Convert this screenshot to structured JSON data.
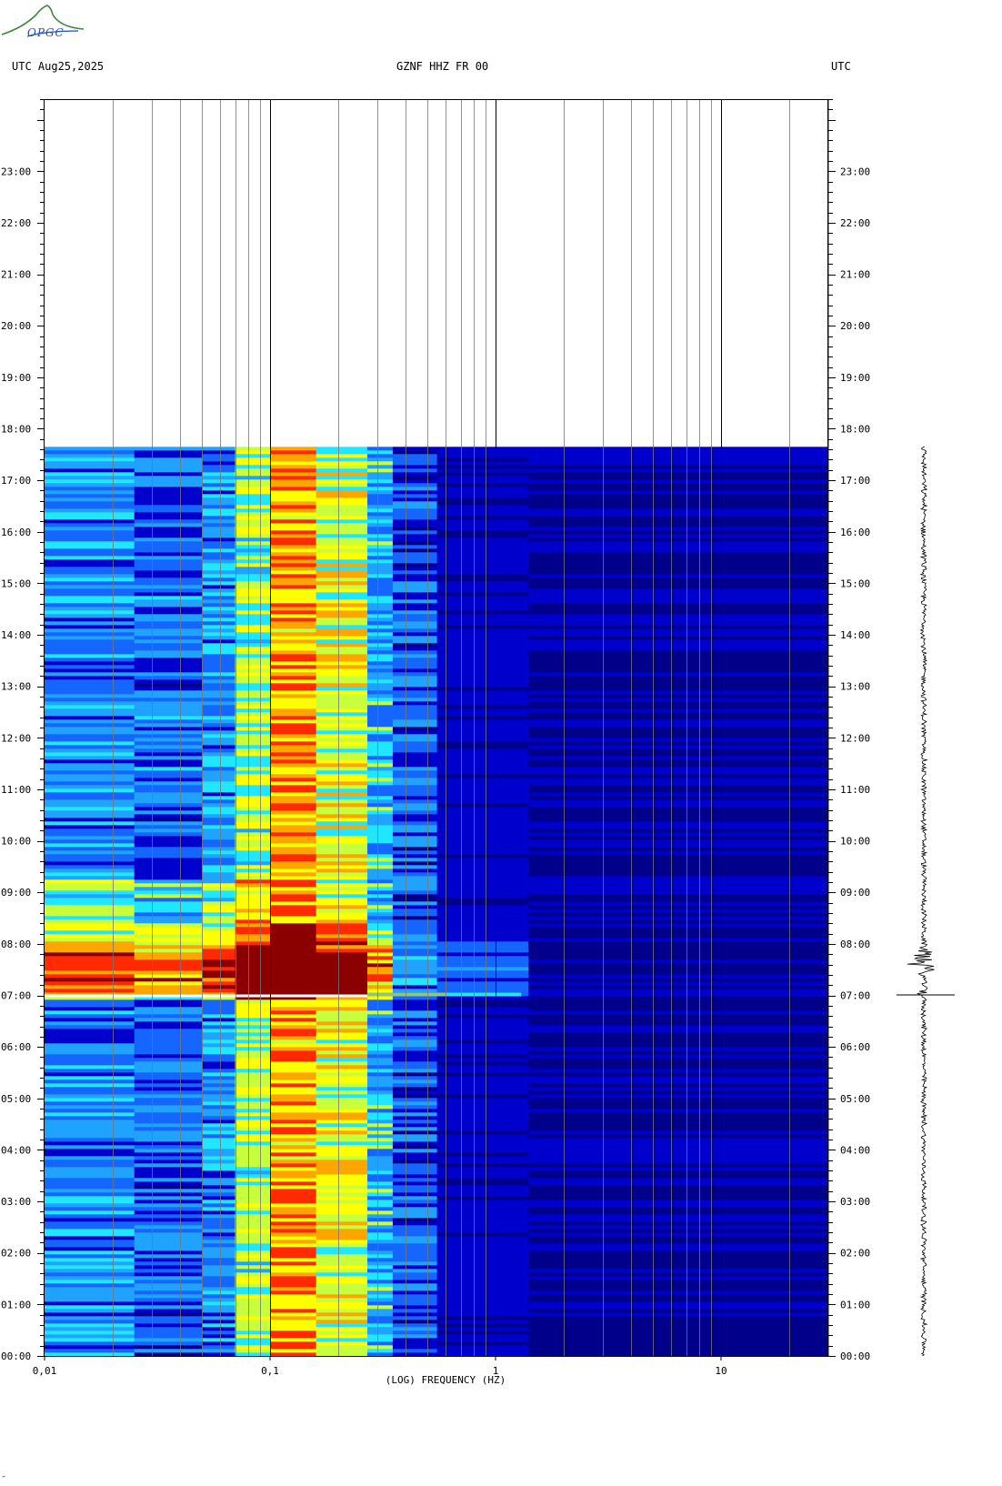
{
  "header": {
    "left_label": "UTC  Aug25,2025",
    "center_label": "GZNF HHZ FR 00",
    "right_label": "UTC"
  },
  "logo": {
    "text": "OPGC",
    "color": "#3a8a3a",
    "accent": "#1f4fb8"
  },
  "footer": {
    "mark": "‴"
  },
  "chart_data": {
    "type": "heatmap",
    "title": "GZNF HHZ FR 00",
    "xlabel": "(LOG) FREQUENCY (HZ)",
    "ylabel": "",
    "x_scale": "log",
    "xlim": [
      0.01,
      30
    ],
    "x_tick_labels": [
      "0,01",
      "0,1",
      "1",
      "10"
    ],
    "x_tick_values": [
      0.01,
      0.1,
      1,
      10
    ],
    "y_unit": "hours UTC",
    "ylim": [
      0,
      24.4
    ],
    "y_tick_labels": [
      "00:00",
      "01:00",
      "02:00",
      "03:00",
      "04:00",
      "05:00",
      "06:00",
      "07:00",
      "08:00",
      "09:00",
      "10:00",
      "11:00",
      "12:00",
      "13:00",
      "14:00",
      "15:00",
      "16:00",
      "17:00",
      "18:00",
      "19:00",
      "20:00",
      "21:00",
      "22:00",
      "23:00"
    ],
    "y_tick_values": [
      0,
      1,
      2,
      3,
      4,
      5,
      6,
      7,
      8,
      9,
      10,
      11,
      12,
      13,
      14,
      15,
      16,
      17,
      18,
      19,
      20,
      21,
      22,
      23
    ],
    "data_end_hour": 17.65,
    "event_hour": 7.0,
    "colormap": [
      "#00008b",
      "#0000cd",
      "#1565ff",
      "#1fa3ff",
      "#21e6ff",
      "#c8ff3c",
      "#ffff00",
      "#ffa500",
      "#ff2a00",
      "#8b0000"
    ],
    "bands": [
      {
        "f_min": 0.01,
        "f_max": 0.025,
        "level": 0.28
      },
      {
        "f_min": 0.025,
        "f_max": 0.05,
        "level": 0.22
      },
      {
        "f_min": 0.05,
        "f_max": 0.07,
        "level": 0.3
      },
      {
        "f_min": 0.07,
        "f_max": 0.1,
        "level": 0.55
      },
      {
        "f_min": 0.1,
        "f_max": 0.16,
        "level": 0.78
      },
      {
        "f_min": 0.16,
        "f_max": 0.27,
        "level": 0.62
      },
      {
        "f_min": 0.27,
        "f_max": 0.35,
        "level": 0.35
      },
      {
        "f_min": 0.35,
        "f_max": 0.55,
        "level": 0.2
      },
      {
        "f_min": 0.55,
        "f_max": 1.4,
        "level": 0.09
      },
      {
        "f_min": 1.4,
        "f_max": 30,
        "level": 0.04
      }
    ],
    "trace_label": "seismogram",
    "trace_color": "#000000"
  }
}
